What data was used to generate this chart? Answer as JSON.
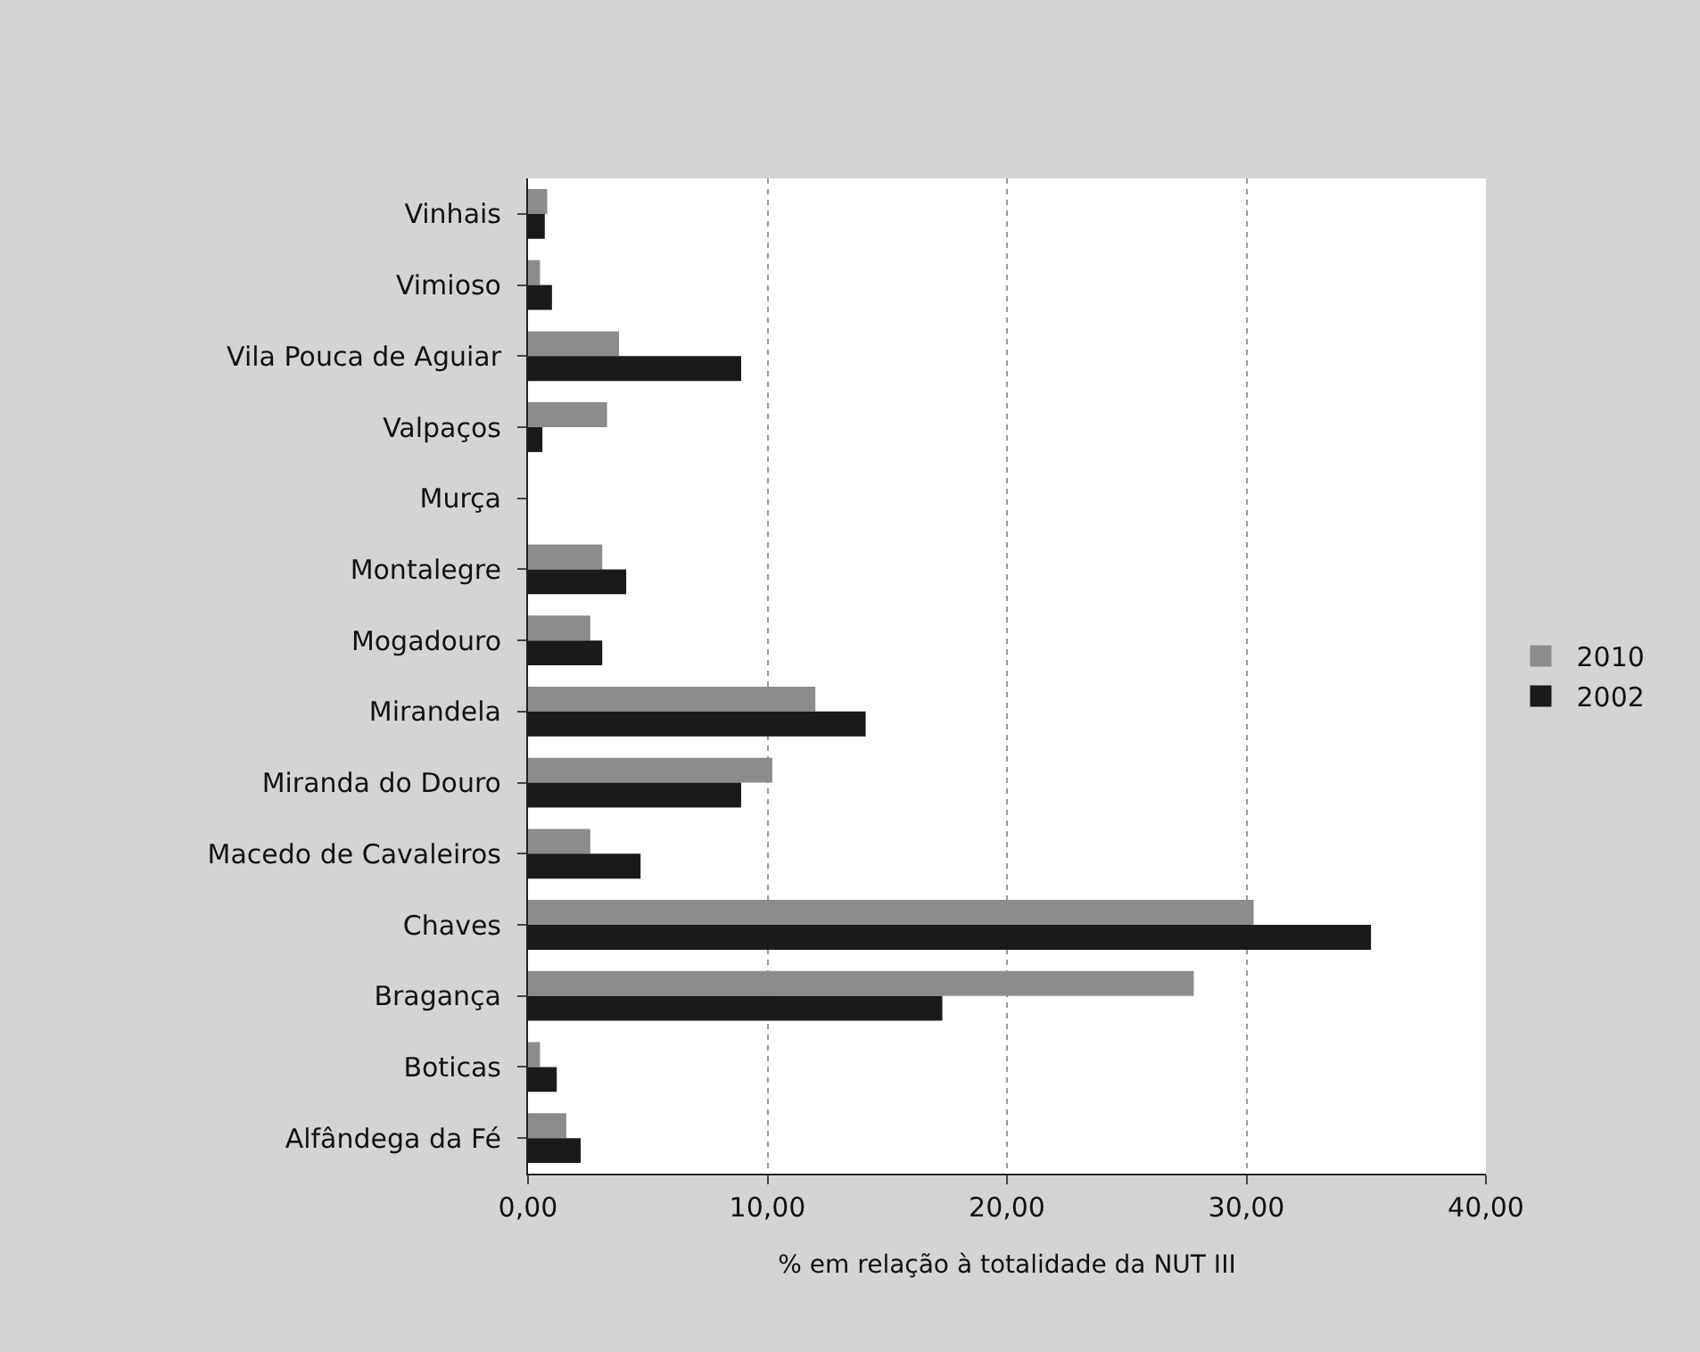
{
  "chart_data": {
    "type": "bar",
    "orientation": "horizontal",
    "xlabel": "% em relação à totalidade da NUT III",
    "categories": [
      "Vinhais",
      "Vimioso",
      "Vila Pouca de Aguiar",
      "Valpaços",
      "Murça",
      "Montalegre",
      "Mogadouro",
      "Mirandela",
      "Miranda do Douro",
      "Macedo de Cavaleiros",
      "Chaves",
      "Bragança",
      "Boticas",
      "Alfândega da Fé"
    ],
    "series": [
      {
        "name": "2010",
        "color": "#8c8c8c",
        "values": [
          0.8,
          0.5,
          3.8,
          3.3,
          0,
          3.1,
          2.6,
          12.0,
          10.2,
          2.6,
          30.3,
          27.8,
          0.5,
          1.6
        ]
      },
      {
        "name": "2002",
        "color": "#1a1a1a",
        "values": [
          0.7,
          1.0,
          8.9,
          0.6,
          0,
          4.1,
          3.1,
          14.1,
          8.9,
          4.7,
          35.2,
          17.3,
          1.2,
          2.2
        ]
      }
    ],
    "xlim": [
      0,
      40
    ],
    "xticks": [
      {
        "value": 0,
        "label": "0,00"
      },
      {
        "value": 10,
        "label": "10,00"
      },
      {
        "value": 20,
        "label": "20,00"
      },
      {
        "value": 30,
        "label": "30,00"
      },
      {
        "value": 40,
        "label": "40,00"
      }
    ],
    "grid": "x",
    "legend": "right"
  }
}
